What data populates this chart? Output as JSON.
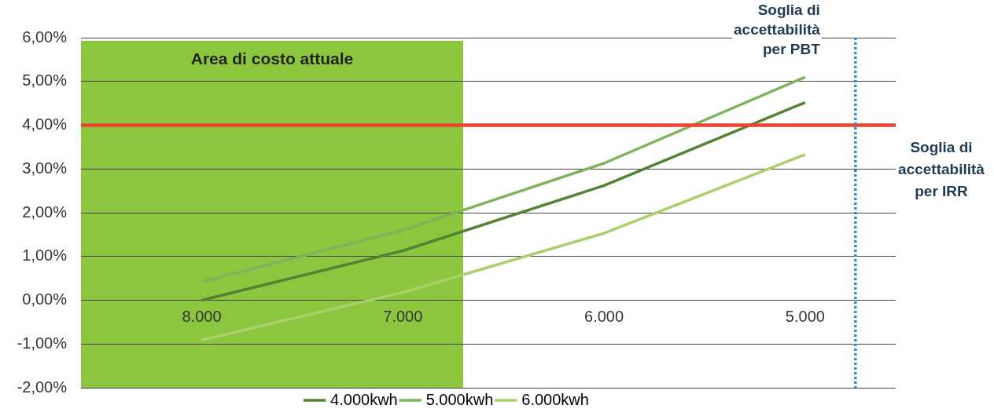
{
  "chart_data": {
    "type": "line",
    "x": [
      8000,
      7000,
      6000,
      5000
    ],
    "xlim": [
      8600,
      4550
    ],
    "xticks": [
      {
        "value": 8000,
        "label": "8.000"
      },
      {
        "value": 7000,
        "label": "7.000"
      },
      {
        "value": 6000,
        "label": "6.000"
      },
      {
        "value": 5000,
        "label": "5.000"
      }
    ],
    "ylim": [
      -2,
      6
    ],
    "yticks": [
      {
        "value": -2,
        "label": "-2,00%"
      },
      {
        "value": -1,
        "label": "-1,00%"
      },
      {
        "value": 0,
        "label": "0,00%"
      },
      {
        "value": 1,
        "label": "1,00%"
      },
      {
        "value": 2,
        "label": "2,00%"
      },
      {
        "value": 3,
        "label": "3,00%"
      },
      {
        "value": 4,
        "label": "4,00%"
      },
      {
        "value": 5,
        "label": "5,00%"
      },
      {
        "value": 6,
        "label": "6,00%"
      }
    ],
    "series": [
      {
        "name": "4.000kwh",
        "color": "#548235",
        "values": [
          0.0,
          1.13,
          2.62,
          4.52
        ]
      },
      {
        "name": "5.000kwh",
        "color": "#7eb35c",
        "values": [
          0.42,
          1.6,
          3.13,
          5.1
        ]
      },
      {
        "name": "6.000kwh",
        "color": "#a9d06a",
        "values": [
          -0.91,
          0.18,
          1.53,
          3.33
        ]
      }
    ],
    "bands": [
      {
        "axis": "x",
        "from": 8600,
        "to": 6700,
        "label": "Area di costo attuale",
        "color": "#8cc63f"
      }
    ],
    "ref_lines": [
      {
        "axis": "y",
        "value": 4,
        "label": "Soglia di accettabilità per IRR",
        "color": "#ee4130",
        "line_style": "solid"
      },
      {
        "axis": "x",
        "value": 4750,
        "label": "Soglia di accettabilità per PBT",
        "color": "#2e8fd6",
        "line_style": "dotted"
      }
    ],
    "grid": "y",
    "legend": "bottom",
    "marker": "none",
    "line_style": "solid"
  }
}
